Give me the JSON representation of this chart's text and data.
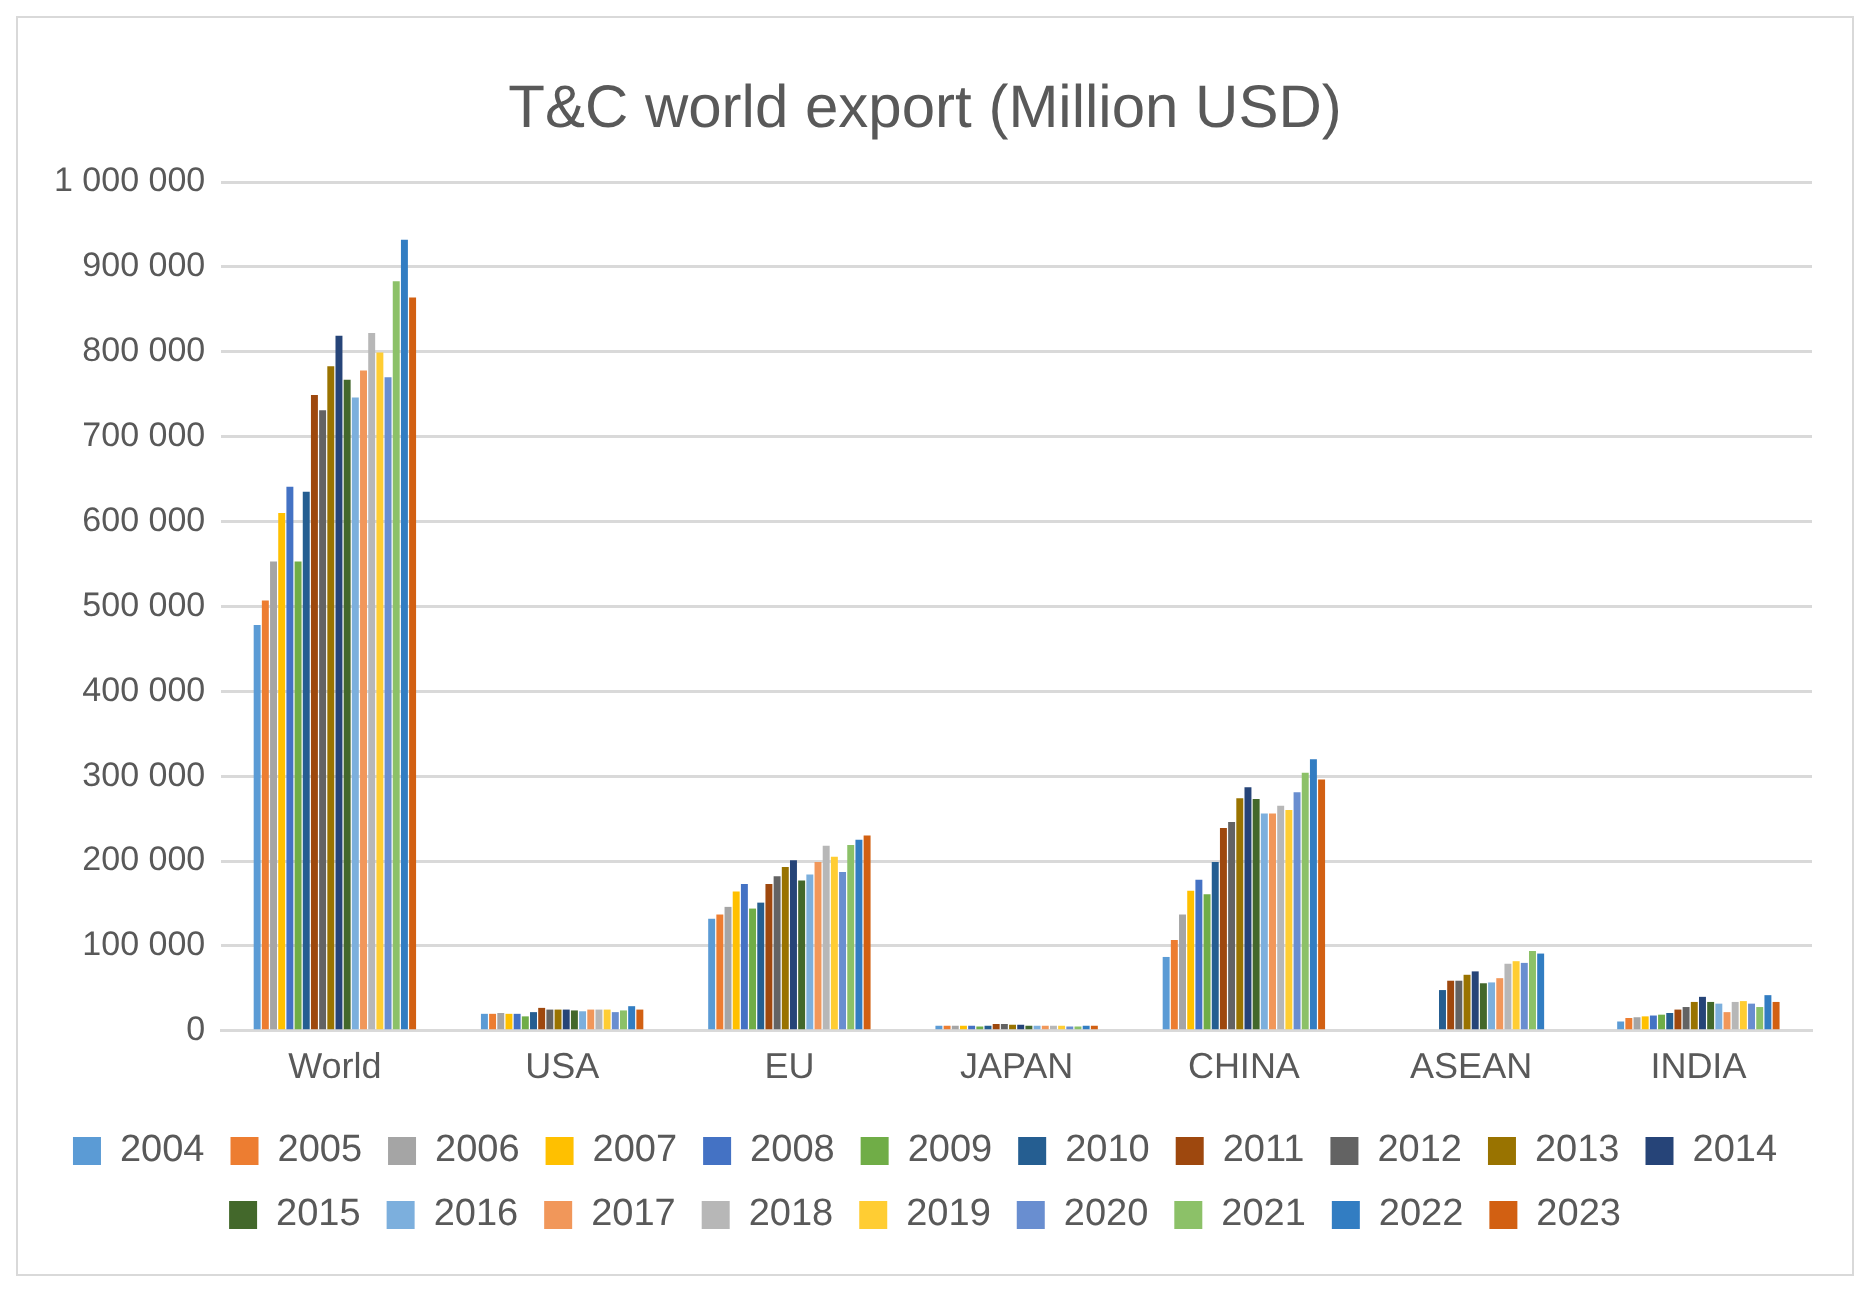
{
  "chart_data": {
    "type": "bar",
    "title": "T&C world export (Million USD)",
    "categories": [
      "World",
      "USA",
      "EU",
      "JAPAN",
      "CHINA",
      "ASEAN",
      "INDIA"
    ],
    "ylim": [
      0,
      1000000
    ],
    "yticks": [
      {
        "value": 0,
        "label": "0"
      },
      {
        "value": 100000,
        "label": "100 000"
      },
      {
        "value": 200000,
        "label": "200 000"
      },
      {
        "value": 300000,
        "label": "300 000"
      },
      {
        "value": 400000,
        "label": "400 000"
      },
      {
        "value": 500000,
        "label": "500 000"
      },
      {
        "value": 600000,
        "label": "600 000"
      },
      {
        "value": 700000,
        "label": "700 000"
      },
      {
        "value": 800000,
        "label": "800 000"
      },
      {
        "value": 900000,
        "label": "900 000"
      },
      {
        "value": 1000000,
        "label": "1 000 000"
      }
    ],
    "grid": "y",
    "legend": "bottom",
    "series": [
      {
        "name": "2004",
        "color": "#5b9bd5",
        "values": [
          478000,
          20000,
          132000,
          6000,
          87000,
          null,
          11000
        ]
      },
      {
        "name": "2005",
        "color": "#ed7d31",
        "values": [
          507000,
          20000,
          137000,
          6000,
          107000,
          null,
          15000
        ]
      },
      {
        "name": "2006",
        "color": "#a5a5a5",
        "values": [
          553000,
          21000,
          146000,
          6000,
          137000,
          null,
          16000
        ]
      },
      {
        "name": "2007",
        "color": "#ffc000",
        "values": [
          610000,
          20000,
          164000,
          6000,
          165000,
          null,
          17000
        ]
      },
      {
        "name": "2008",
        "color": "#4472c4",
        "values": [
          641000,
          20000,
          173000,
          6000,
          178000,
          null,
          18000
        ]
      },
      {
        "name": "2009",
        "color": "#70ad47",
        "values": [
          553000,
          17000,
          144000,
          5000,
          161000,
          null,
          19000
        ]
      },
      {
        "name": "2010",
        "color": "#255e91",
        "values": [
          635000,
          22000,
          151000,
          6000,
          199000,
          48000,
          21000
        ]
      },
      {
        "name": "2011",
        "color": "#9e480e",
        "values": [
          749000,
          27000,
          173000,
          8000,
          239000,
          59000,
          25000
        ]
      },
      {
        "name": "2012",
        "color": "#636363",
        "values": [
          731000,
          25000,
          182000,
          8000,
          246000,
          59000,
          28000
        ]
      },
      {
        "name": "2013",
        "color": "#997300",
        "values": [
          783000,
          25000,
          193000,
          7000,
          274000,
          66000,
          34000
        ]
      },
      {
        "name": "2014",
        "color": "#264478",
        "values": [
          819000,
          25000,
          201000,
          7000,
          287000,
          70000,
          40000
        ]
      },
      {
        "name": "2015",
        "color": "#43682b",
        "values": [
          767000,
          24000,
          177000,
          6000,
          273000,
          56000,
          34000
        ]
      },
      {
        "name": "2016",
        "color": "#7cafdd",
        "values": [
          746000,
          23000,
          184000,
          6000,
          256000,
          57000,
          32000
        ]
      },
      {
        "name": "2017",
        "color": "#f1975a",
        "values": [
          778000,
          25000,
          199000,
          6000,
          256000,
          62000,
          22000
        ]
      },
      {
        "name": "2018",
        "color": "#b7b7b7",
        "values": [
          822000,
          25000,
          218000,
          6000,
          265000,
          79000,
          34000
        ]
      },
      {
        "name": "2019",
        "color": "#ffcd33",
        "values": [
          799000,
          25000,
          205000,
          6000,
          260000,
          82000,
          35000
        ]
      },
      {
        "name": "2020",
        "color": "#698ed0",
        "values": [
          770000,
          22000,
          187000,
          5000,
          281000,
          80000,
          32000
        ]
      },
      {
        "name": "2021",
        "color": "#8cc168",
        "values": [
          883000,
          24000,
          219000,
          5000,
          304000,
          94000,
          28000
        ]
      },
      {
        "name": "2022",
        "color": "#327dc2",
        "values": [
          932000,
          29000,
          225000,
          6000,
          320000,
          91000,
          42000
        ]
      },
      {
        "name": "2023",
        "color": "#d26012",
        "values": [
          864000,
          25000,
          230000,
          6000,
          296000,
          null,
          34000
        ]
      }
    ]
  }
}
